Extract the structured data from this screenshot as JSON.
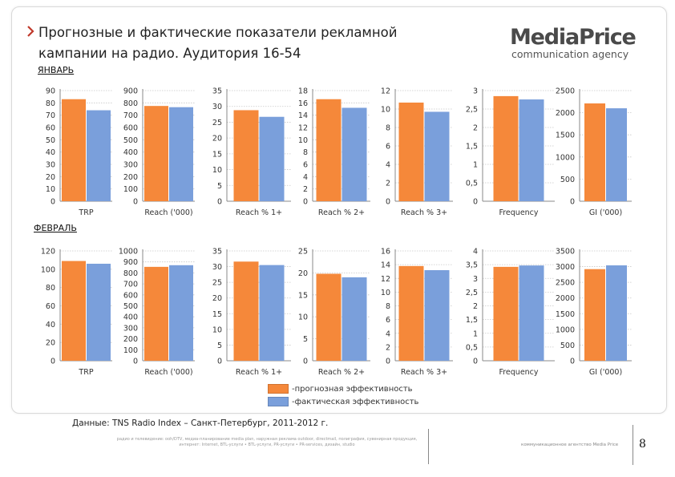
{
  "header": {
    "title_line1": "Прогнозные и фактические показатели рекламной",
    "title_line2": "кампании на радио. Аудитория 16-54",
    "logo_main": "MediaPrice",
    "logo_sub": "communication agency"
  },
  "colors": {
    "forecast": "#f5883a",
    "actual": "#7a9fdb",
    "accent": "#c0392b"
  },
  "months": [
    {
      "label": "ЯНВАРЬ"
    },
    {
      "label": "ФЕВРАЛЬ"
    }
  ],
  "legend": {
    "forecast": "-прогнозная эффективность",
    "actual": "-фактическая эффективность"
  },
  "footer": {
    "source": "Данные: TNS Radio Index – Санкт-Петербург, 2011-2012 г.",
    "fine_print": "радио и телевидение: ooh/DTV, медиа-планирование media plan, наружная реклама outdoor, directmail, полиграфия, сувенирная продукция, интернет: Internet, BTL-услуги • BTL-услуги, PR-услуги • PR-services, дизайн, studio",
    "agency": "коммуникационное агентство Media Price",
    "page_number": "8"
  },
  "chart_data": [
    {
      "type": "bar",
      "group": "ЯНВАРЬ",
      "xlabel": "TRP",
      "ylim": [
        0,
        90
      ],
      "ticks": [
        0,
        10,
        20,
        30,
        40,
        50,
        60,
        70,
        80,
        90
      ],
      "series": [
        {
          "values": [
            83
          ]
        },
        {
          "values": [
            74
          ]
        }
      ]
    },
    {
      "type": "bar",
      "group": "ЯНВАРЬ",
      "xlabel": "Reach ('000)",
      "ylim": [
        0,
        900
      ],
      "ticks": [
        0,
        100,
        200,
        300,
        400,
        500,
        600,
        700,
        800,
        900
      ],
      "series": [
        {
          "values": [
            775
          ]
        },
        {
          "values": [
            765
          ]
        }
      ]
    },
    {
      "type": "bar",
      "group": "ЯНВАРЬ",
      "xlabel": "Reach % 1+",
      "ylim": [
        0,
        35
      ],
      "ticks": [
        0,
        5,
        10,
        15,
        20,
        25,
        30,
        35
      ],
      "series": [
        {
          "values": [
            28.8
          ]
        },
        {
          "values": [
            26.7
          ]
        }
      ]
    },
    {
      "type": "bar",
      "group": "ЯНВАРЬ",
      "xlabel": "Reach % 2+",
      "ylim": [
        0,
        18
      ],
      "ticks": [
        0,
        2,
        4,
        6,
        8,
        10,
        12,
        14,
        16,
        18
      ],
      "series": [
        {
          "values": [
            16.6
          ]
        },
        {
          "values": [
            15.2
          ]
        }
      ]
    },
    {
      "type": "bar",
      "group": "ЯНВАРЬ",
      "xlabel": "Reach % 3+",
      "ylim": [
        0,
        12
      ],
      "ticks": [
        0,
        2,
        4,
        6,
        8,
        10,
        12
      ],
      "series": [
        {
          "values": [
            10.7
          ]
        },
        {
          "values": [
            9.7
          ]
        }
      ]
    },
    {
      "type": "bar",
      "group": "ЯНВАРЬ",
      "xlabel": "Frequency",
      "ylim": [
        0,
        3
      ],
      "ticks": [
        0,
        0.5,
        1,
        1.5,
        2,
        2.5,
        3
      ],
      "series": [
        {
          "values": [
            2.85
          ]
        },
        {
          "values": [
            2.76
          ]
        }
      ]
    },
    {
      "type": "bar",
      "group": "ЯНВАРЬ",
      "xlabel": "GI ('000)",
      "ylim": [
        0,
        2500
      ],
      "ticks": [
        0,
        500,
        1000,
        1500,
        2000,
        2500
      ],
      "series": [
        {
          "values": [
            2210
          ]
        },
        {
          "values": [
            2100
          ]
        }
      ]
    },
    {
      "type": "bar",
      "group": "ФЕВРАЛЬ",
      "xlabel": "TRP",
      "ylim": [
        0,
        120
      ],
      "ticks": [
        0,
        20,
        40,
        60,
        80,
        100,
        120
      ],
      "series": [
        {
          "values": [
            109
          ]
        },
        {
          "values": [
            106
          ]
        }
      ]
    },
    {
      "type": "bar",
      "group": "ФЕВРАЛЬ",
      "xlabel": "Reach ('000)",
      "ylim": [
        0,
        1000
      ],
      "ticks": [
        0,
        100,
        200,
        300,
        400,
        500,
        600,
        700,
        800,
        900,
        1000
      ],
      "series": [
        {
          "values": [
            855
          ]
        },
        {
          "values": [
            870
          ]
        }
      ]
    },
    {
      "type": "bar",
      "group": "ФЕВРАЛЬ",
      "xlabel": "Reach % 1+",
      "ylim": [
        0,
        35
      ],
      "ticks": [
        0,
        5,
        10,
        15,
        20,
        25,
        30,
        35
      ],
      "series": [
        {
          "values": [
            31.6
          ]
        },
        {
          "values": [
            30.5
          ]
        }
      ]
    },
    {
      "type": "bar",
      "group": "ФЕВРАЛЬ",
      "xlabel": "Reach % 2+",
      "ylim": [
        0,
        25
      ],
      "ticks": [
        0,
        5,
        10,
        15,
        20,
        25
      ],
      "series": [
        {
          "values": [
            19.8
          ]
        },
        {
          "values": [
            19.0
          ]
        }
      ]
    },
    {
      "type": "bar",
      "group": "ФЕВРАЛЬ",
      "xlabel": "Reach % 3+",
      "ylim": [
        0,
        16
      ],
      "ticks": [
        0,
        2,
        4,
        6,
        8,
        10,
        12,
        14,
        16
      ],
      "series": [
        {
          "values": [
            13.8
          ]
        },
        {
          "values": [
            13.2
          ]
        }
      ]
    },
    {
      "type": "bar",
      "group": "ФЕВРАЛЬ",
      "xlabel": "Frequency",
      "ylim": [
        0,
        4
      ],
      "ticks": [
        0,
        0.5,
        1,
        1.5,
        2,
        2.5,
        3,
        3.5,
        4
      ],
      "series": [
        {
          "values": [
            3.42
          ]
        },
        {
          "values": [
            3.47
          ]
        }
      ]
    },
    {
      "type": "bar",
      "group": "ФЕВРАЛЬ",
      "xlabel": "GI ('000)",
      "ylim": [
        0,
        3500
      ],
      "ticks": [
        0,
        500,
        1000,
        1500,
        2000,
        2500,
        3000,
        3500
      ],
      "series": [
        {
          "values": [
            2920
          ]
        },
        {
          "values": [
            3040
          ]
        }
      ]
    }
  ]
}
